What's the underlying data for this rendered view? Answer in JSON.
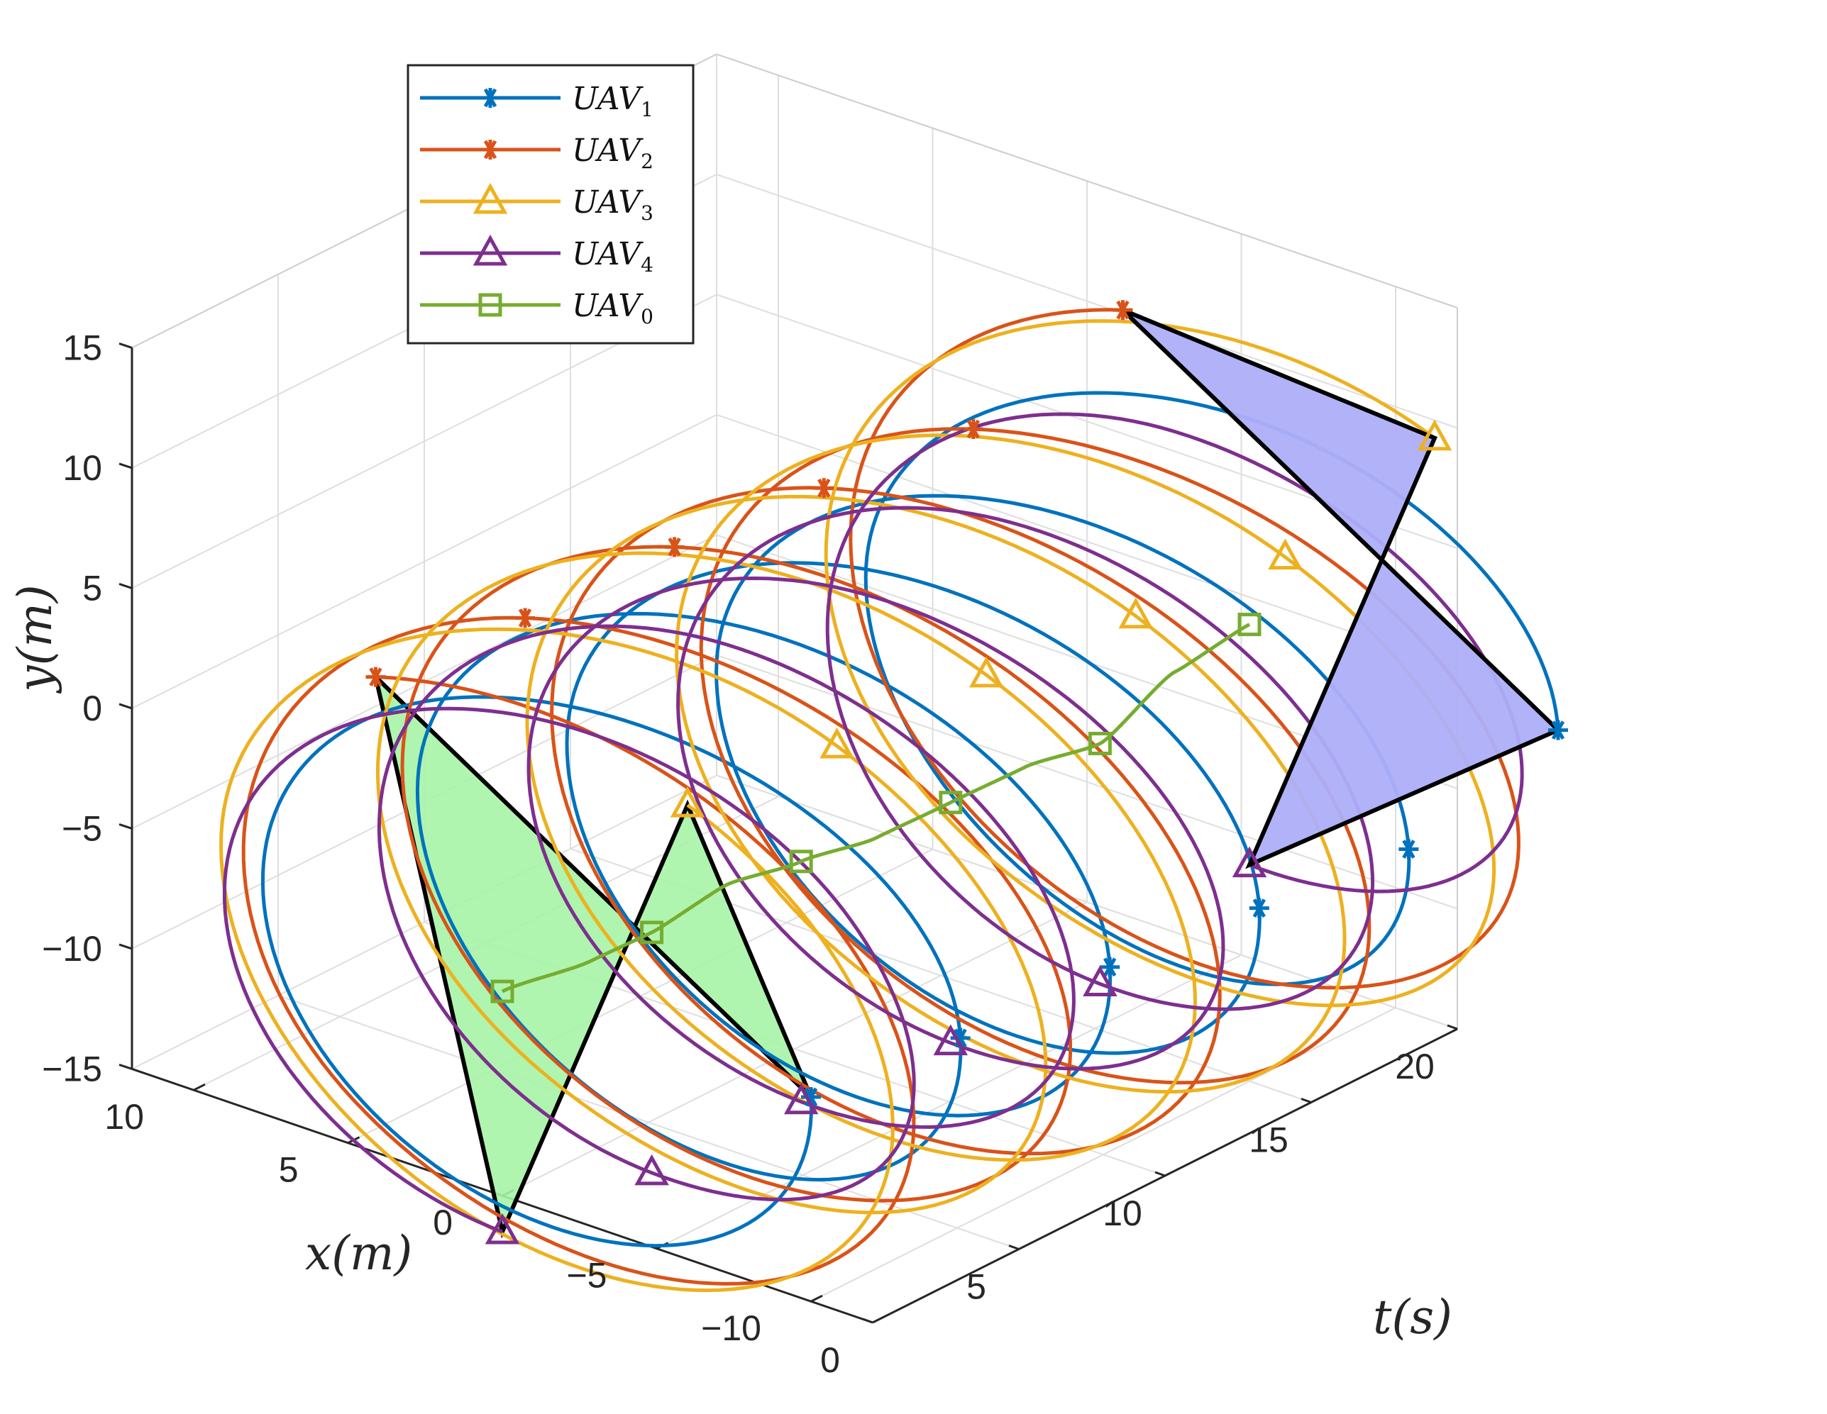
{
  "chart_data": {
    "type": "line",
    "projection": "3d",
    "axes": {
      "t": {
        "label_text": "t(s)",
        "ticks": [
          0,
          5,
          10,
          15,
          20
        ],
        "range": [
          0,
          20
        ]
      },
      "x": {
        "label_text": "x(m)",
        "ticks": [
          10,
          5,
          0,
          -5,
          -10
        ],
        "range": [
          -12,
          12
        ]
      },
      "y": {
        "label_text": "y(m)",
        "ticks": [
          15,
          10,
          5,
          0,
          -5,
          -10,
          -15
        ],
        "range": [
          -15,
          15
        ]
      }
    },
    "grid": true,
    "legend_position": "top-left",
    "series": [
      {
        "name": "UAV",
        "sub": "1",
        "color": "#0072BD",
        "marker": "asterisk",
        "phase_deg": 180,
        "radius": 10
      },
      {
        "name": "UAV",
        "sub": "2",
        "color": "#D95319",
        "marker": "asterisk",
        "phase_deg": 70,
        "radius": 12
      },
      {
        "name": "UAV",
        "sub": "3",
        "color": "#EDB120",
        "marker": "triangle",
        "phase_deg": 120,
        "radius": 12
      },
      {
        "name": "UAV",
        "sub": "4",
        "color": "#7E2F8E",
        "marker": "triangle",
        "phase_deg": 270,
        "radius": 10
      },
      {
        "name": "UAV",
        "sub": "0",
        "color": "#77AC30",
        "marker": "square",
        "phase_deg": 0,
        "radius": 0
      }
    ],
    "uav0_path": {
      "t": [
        0,
        2,
        3,
        4.5,
        6,
        7.5,
        9,
        10.5,
        12,
        13.5,
        15
      ],
      "x": [
        0,
        -1,
        -2,
        -3,
        -4,
        -5,
        -6,
        -7,
        -8,
        -9,
        -10
      ],
      "y": [
        -6.5,
        -6,
        -5,
        -3.5,
        -3,
        -2.5,
        -1.5,
        -0.5,
        0,
        2.5,
        4
      ]
    },
    "uav0_markers_t": [
      0,
      3,
      6,
      9,
      12,
      15
    ],
    "marker_interval_s": 3,
    "start_formation": {
      "shape": "triangle",
      "fill": "#A6F4A6",
      "t": 0
    },
    "end_formation": {
      "shape": "rectangle",
      "fill": "#AEAEF8",
      "t": 15
    }
  }
}
